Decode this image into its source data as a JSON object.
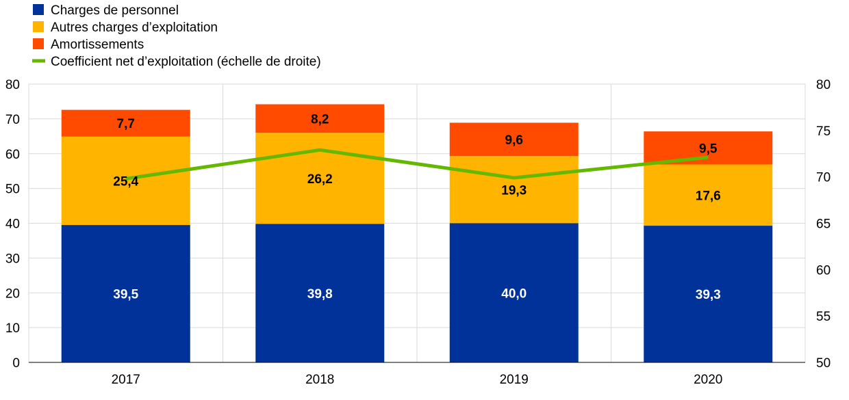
{
  "chart_data": {
    "type": "bar",
    "stacked": true,
    "categories": [
      "2017",
      "2018",
      "2019",
      "2020"
    ],
    "series": [
      {
        "name": "Charges de personnel",
        "color": "#003299",
        "values": [
          39.5,
          39.8,
          40.0,
          39.3
        ],
        "labels": [
          "39,5",
          "39,8",
          "40,0",
          "39,3"
        ],
        "label_color": "#ffffff"
      },
      {
        "name": "Autres charges d’exploitation",
        "color": "#ffb400",
        "values": [
          25.4,
          26.2,
          19.3,
          17.6
        ],
        "labels": [
          "25,4",
          "26,2",
          "19,3",
          "17,6"
        ],
        "label_color": "#000000"
      },
      {
        "name": "Amortissements",
        "color": "#ff4b00",
        "values": [
          7.7,
          8.2,
          9.6,
          9.5
        ],
        "labels": [
          "7,7",
          "8,2",
          "9,6",
          "9,5"
        ],
        "label_color": "#000000"
      }
    ],
    "line_series": {
      "name": "Coefficient net d’exploitation (échelle de droite)",
      "color": "#65b800",
      "axis": "right",
      "values": [
        69.8,
        72.9,
        69.9,
        72.1
      ]
    },
    "y_left": {
      "min": 0,
      "max": 80,
      "ticks": [
        0,
        10,
        20,
        30,
        40,
        50,
        60,
        70,
        80
      ]
    },
    "y_right": {
      "min": 50,
      "max": 80,
      "ticks": [
        50,
        55,
        60,
        65,
        70,
        75,
        80
      ]
    },
    "grid": true,
    "legend_position": "top-left"
  }
}
